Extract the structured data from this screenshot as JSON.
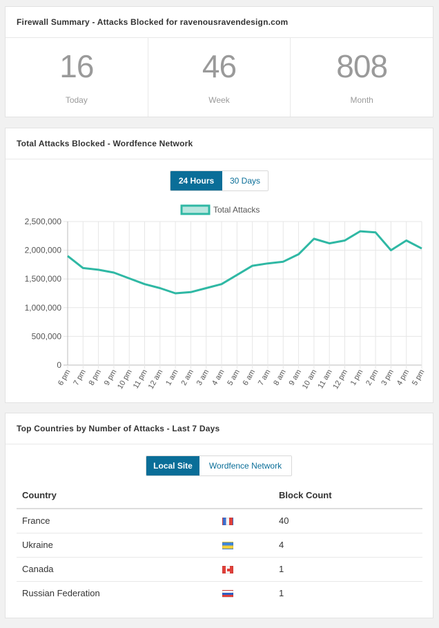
{
  "firewall": {
    "title": "Firewall Summary - Attacks Blocked for ravenousravendesign.com",
    "stats": [
      {
        "value": "16",
        "label": "Today"
      },
      {
        "value": "46",
        "label": "Week"
      },
      {
        "value": "808",
        "label": "Month"
      }
    ]
  },
  "network": {
    "title": "Total Attacks Blocked - Wordfence Network",
    "toggle": {
      "active": "24 Hours",
      "inactive": "30 Days"
    },
    "chart_data": {
      "type": "line",
      "legend": "Total Attacks",
      "series_color": "#2fb8a4",
      "x": [
        "6 pm",
        "7 pm",
        "8 pm",
        "9 pm",
        "10 pm",
        "11 pm",
        "12 am",
        "1 am",
        "2 am",
        "3 am",
        "4 am",
        "5 am",
        "6 am",
        "7 am",
        "8 am",
        "9 am",
        "10 am",
        "11 am",
        "12 pm",
        "1 pm",
        "2 pm",
        "3 pm",
        "4 pm",
        "5 pm"
      ],
      "series": [
        {
          "name": "Total Attacks",
          "values": [
            1900000,
            1690000,
            1660000,
            1610000,
            1510000,
            1410000,
            1340000,
            1250000,
            1270000,
            1340000,
            1410000,
            1570000,
            1730000,
            1770000,
            1800000,
            1930000,
            2200000,
            2120000,
            2170000,
            2330000,
            2310000,
            2000000,
            2170000,
            2030000
          ]
        }
      ],
      "yticks": [
        "2,500,000",
        "2,000,000",
        "1,500,000",
        "1,000,000",
        "500,000",
        "0"
      ],
      "ylim": [
        0,
        2500000
      ],
      "grid": true
    }
  },
  "countries": {
    "title": "Top Countries by Number of Attacks - Last 7 Days",
    "toggle": {
      "active": "Local Site",
      "inactive": "Wordfence Network"
    },
    "headers": {
      "country": "Country",
      "count": "Block Count"
    },
    "rows": [
      {
        "country": "France",
        "count": "40",
        "flag": "france-flag"
      },
      {
        "country": "Ukraine",
        "count": "4",
        "flag": "ukraine-flag"
      },
      {
        "country": "Canada",
        "count": "1",
        "flag": "canada-flag"
      },
      {
        "country": "Russian Federation",
        "count": "1",
        "flag": "russia-flag"
      }
    ]
  }
}
